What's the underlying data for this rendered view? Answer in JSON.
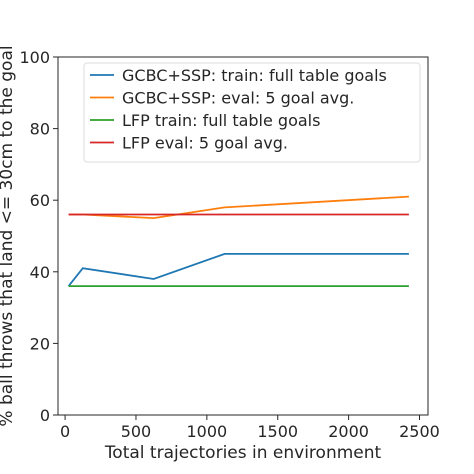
{
  "chart_data": {
    "type": "line",
    "xlabel": "Total trajectories in environment",
    "ylabel": "% ball throws that land <= 30cm to the goal",
    "xlim": [
      -50,
      2560
    ],
    "ylim": [
      0,
      100
    ],
    "xticks": [
      0,
      500,
      1000,
      1500,
      2000,
      2500
    ],
    "yticks": [
      0,
      20,
      40,
      60,
      80,
      100
    ],
    "grid": false,
    "legend_position": "top-right",
    "series": [
      {
        "name": "GCBC+SSP:  train: full table goals",
        "color": "#1f77b4",
        "x": [
          25,
          125,
          625,
          1125,
          2425
        ],
        "y": [
          36,
          41,
          38,
          45,
          45
        ]
      },
      {
        "name": "GCBC+SSP:  eval: 5 goal avg.",
        "color": "#ff7f0e",
        "x": [
          25,
          125,
          625,
          1125,
          2425
        ],
        "y": [
          56,
          56,
          55,
          58,
          61
        ]
      },
      {
        "name": "LFP train: full table goals",
        "color": "#2ca02c",
        "x": [
          25,
          2425
        ],
        "y": [
          36,
          36
        ]
      },
      {
        "name": "LFP eval: 5 goal avg.",
        "color": "#d62728",
        "x": [
          25,
          2425
        ],
        "y": [
          56,
          56
        ]
      }
    ]
  }
}
